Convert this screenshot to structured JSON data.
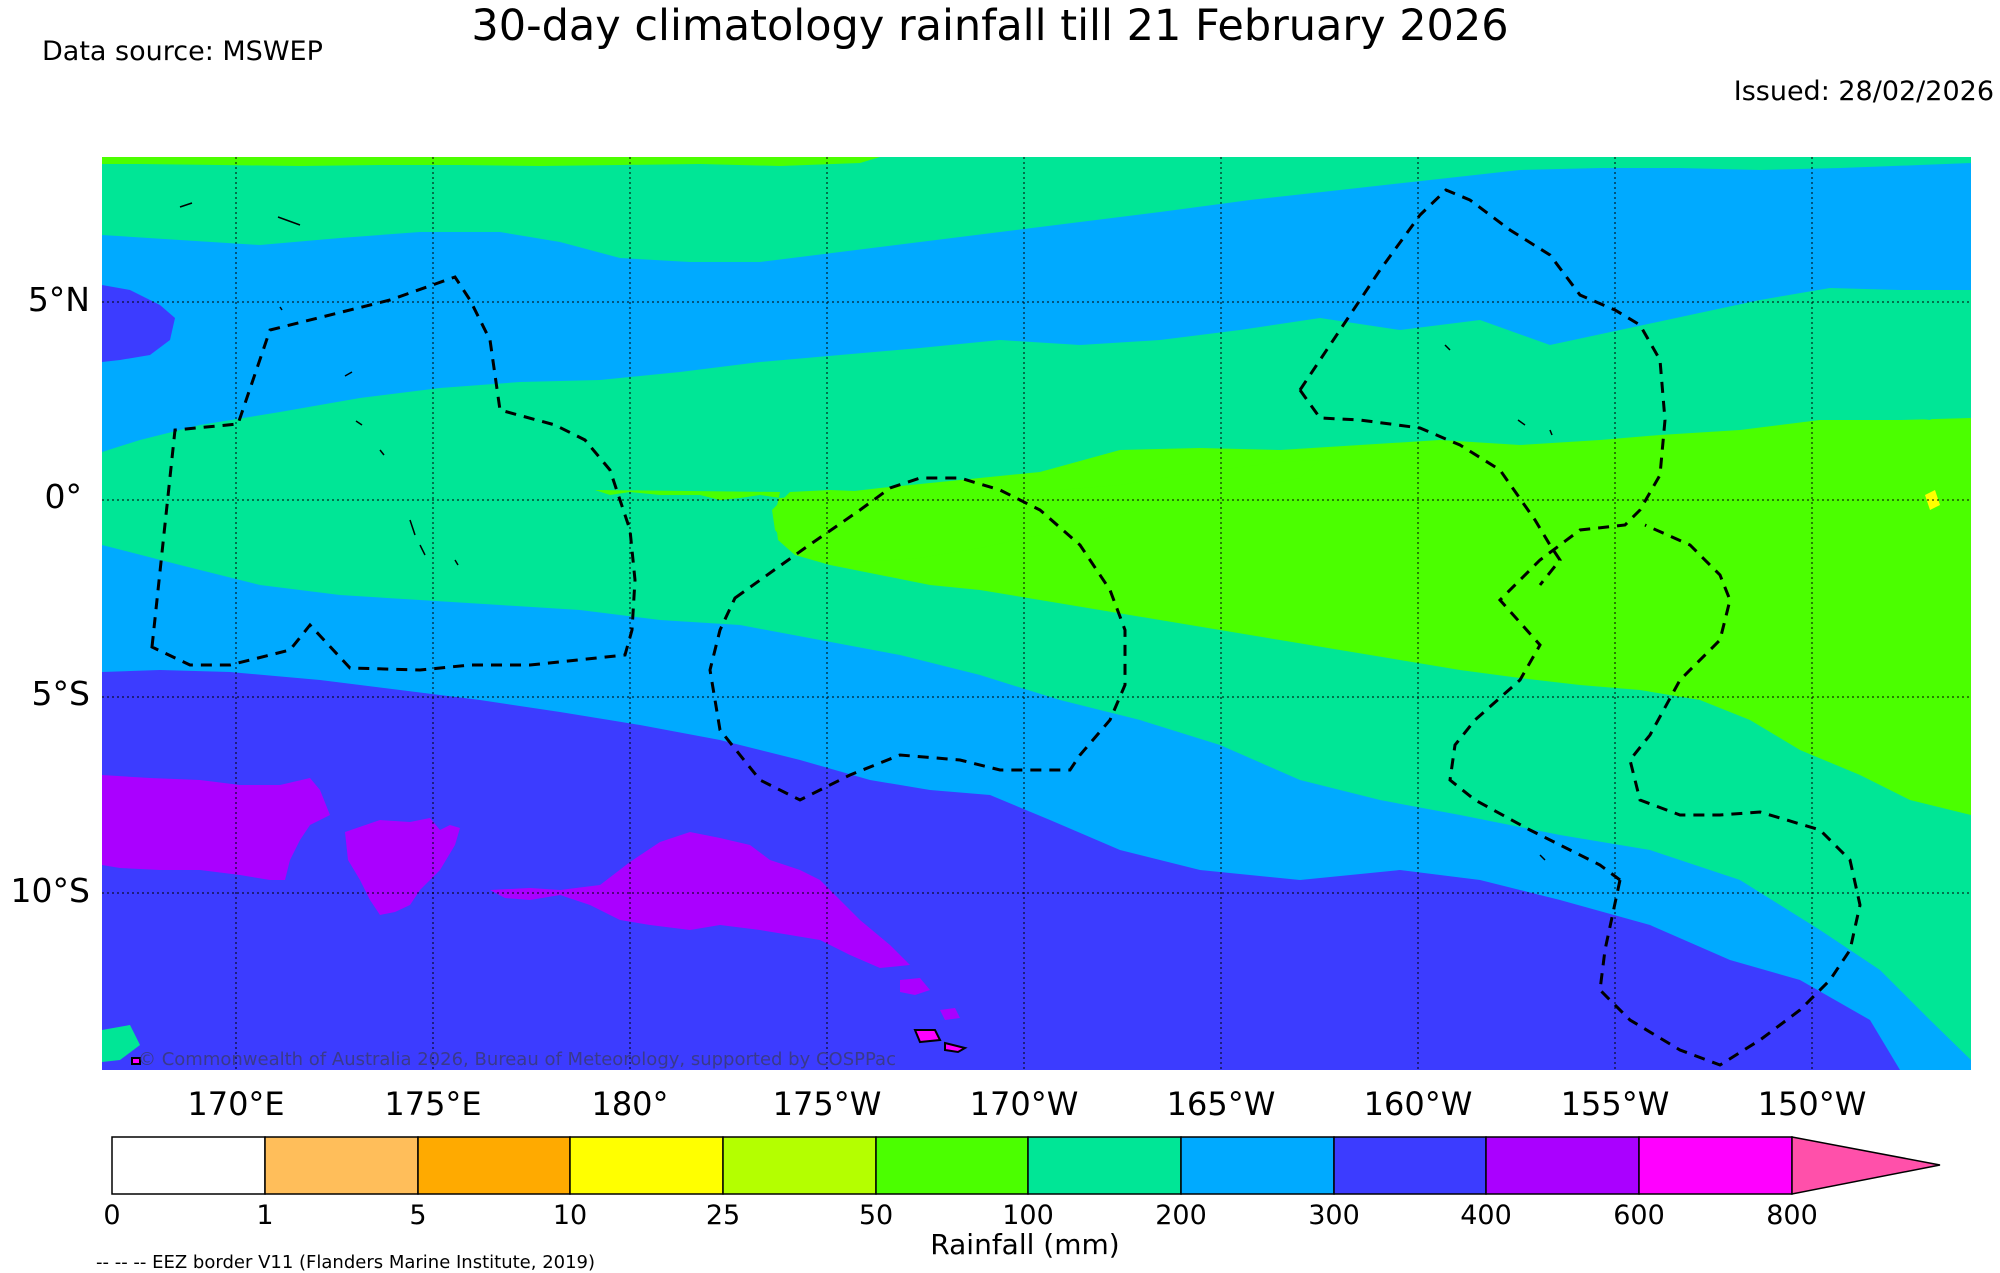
{
  "header": {
    "title": "30-day climatology rainfall till 21 February 2026",
    "data_source": "Data source: MSWEP",
    "issued": "Issued: 28/02/2026"
  },
  "map": {
    "latitude_labels": [
      "5°N",
      "0°",
      "5°S",
      "10°S"
    ],
    "longitude_labels": [
      "170°E",
      "175°E",
      "180°",
      "175°W",
      "170°W",
      "165°W",
      "160°W",
      "155°W",
      "150°W"
    ],
    "copyright": "© Commonwealth of Australia 2026, Bureau of Meteorology, supported by COSPPac",
    "gridlines": true,
    "overlay": "EEZ borders (dashed)"
  },
  "colorbar": {
    "title": "Rainfall (mm)",
    "ticks": [
      "0",
      "1",
      "5",
      "10",
      "25",
      "50",
      "100",
      "200",
      "300",
      "400",
      "600",
      "800"
    ],
    "colors": [
      "#ffffff",
      "#ffbe5a",
      "#ffaa00",
      "#ffff00",
      "#b4ff00",
      "#4bff00",
      "#00e696",
      "#00aaff",
      "#3c3cff",
      "#aa00ff",
      "#ff00ff",
      "#ff50aa"
    ],
    "extends": "max"
  },
  "footer": {
    "credit": "-- -- -- EEZ border V11 (Flanders Marine Institute, 2019)"
  }
}
